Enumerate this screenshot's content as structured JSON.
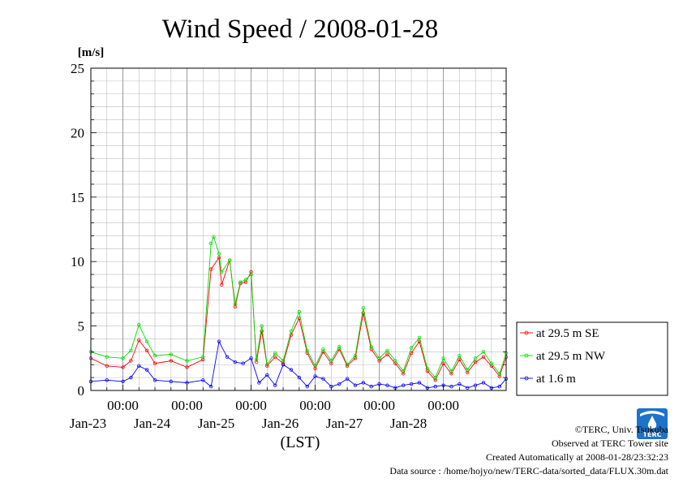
{
  "chart_data": {
    "type": "line",
    "title": "Wind Speed / 2008-01-28",
    "ylabel": "[m/s]",
    "xlabel": "(LST)",
    "ylim": [
      0,
      25
    ],
    "yticks": [
      0,
      5,
      10,
      15,
      20,
      25
    ],
    "xlim": [
      "2008-01-22T12:00",
      "2008-01-28T23:30"
    ],
    "xtick_time_label": "00:00",
    "xticks": [
      "2008-01-23T00:00",
      "2008-01-24T00:00",
      "2008-01-25T00:00",
      "2008-01-26T00:00",
      "2008-01-27T00:00",
      "2008-01-28T00:00"
    ],
    "xtick_date_labels": [
      "Jan-23",
      "Jan-24",
      "Jan-25",
      "Jan-26",
      "Jan-27",
      "Jan-28"
    ],
    "grid": true,
    "legend_position": "right",
    "series": [
      {
        "name": "at 29.5 m SE",
        "color": "#ff0000",
        "x": [
          "2008-01-22T12:00",
          "2008-01-22T18:00",
          "2008-01-23T00:00",
          "2008-01-23T03:00",
          "2008-01-23T06:00",
          "2008-01-23T09:00",
          "2008-01-23T12:00",
          "2008-01-23T18:00",
          "2008-01-24T00:00",
          "2008-01-24T06:00",
          "2008-01-24T09:00",
          "2008-01-24T12:00",
          "2008-01-24T13:00",
          "2008-01-24T16:00",
          "2008-01-24T18:00",
          "2008-01-24T20:00",
          "2008-01-24T22:00",
          "2008-01-25T00:00",
          "2008-01-25T02:00",
          "2008-01-25T04:00",
          "2008-01-25T06:00",
          "2008-01-25T09:00",
          "2008-01-25T12:00",
          "2008-01-25T15:00",
          "2008-01-25T18:00",
          "2008-01-25T21:00",
          "2008-01-26T00:00",
          "2008-01-26T03:00",
          "2008-01-26T06:00",
          "2008-01-26T09:00",
          "2008-01-26T12:00",
          "2008-01-26T15:00",
          "2008-01-26T18:00",
          "2008-01-26T21:00",
          "2008-01-27T00:00",
          "2008-01-27T03:00",
          "2008-01-27T06:00",
          "2008-01-27T09:00",
          "2008-01-27T12:00",
          "2008-01-27T15:00",
          "2008-01-27T18:00",
          "2008-01-27T21:00",
          "2008-01-28T00:00",
          "2008-01-28T03:00",
          "2008-01-28T06:00",
          "2008-01-28T09:00",
          "2008-01-28T12:00",
          "2008-01-28T15:00",
          "2008-01-28T18:00",
          "2008-01-28T21:00",
          "2008-01-28T23:30"
        ],
        "values": [
          2.5,
          1.9,
          1.8,
          2.3,
          3.9,
          3.1,
          2.1,
          2.3,
          1.8,
          2.4,
          9.4,
          10.3,
          8.2,
          10.1,
          6.5,
          8.3,
          8.4,
          9.2,
          2.2,
          4.6,
          1.9,
          2.6,
          2.1,
          4.3,
          5.6,
          2.9,
          1.7,
          3.0,
          2.1,
          3.2,
          1.9,
          2.5,
          6.0,
          3.2,
          2.3,
          2.8,
          2.1,
          1.3,
          2.9,
          3.8,
          1.5,
          0.8,
          2.1,
          1.3,
          2.4,
          1.4,
          2.2,
          2.6,
          1.9,
          1.1,
          2.6
        ]
      },
      {
        "name": "at 29.5 m NW",
        "color": "#00dd00",
        "x": [
          "2008-01-22T12:00",
          "2008-01-22T18:00",
          "2008-01-23T00:00",
          "2008-01-23T03:00",
          "2008-01-23T06:00",
          "2008-01-23T09:00",
          "2008-01-23T12:00",
          "2008-01-23T18:00",
          "2008-01-24T00:00",
          "2008-01-24T06:00",
          "2008-01-24T09:00",
          "2008-01-24T10:00",
          "2008-01-24T12:00",
          "2008-01-24T13:00",
          "2008-01-24T16:00",
          "2008-01-24T18:00",
          "2008-01-24T20:00",
          "2008-01-24T22:00",
          "2008-01-25T00:00",
          "2008-01-25T02:00",
          "2008-01-25T04:00",
          "2008-01-25T06:00",
          "2008-01-25T09:00",
          "2008-01-25T12:00",
          "2008-01-25T15:00",
          "2008-01-25T18:00",
          "2008-01-25T21:00",
          "2008-01-26T00:00",
          "2008-01-26T03:00",
          "2008-01-26T06:00",
          "2008-01-26T09:00",
          "2008-01-26T12:00",
          "2008-01-26T15:00",
          "2008-01-26T18:00",
          "2008-01-26T21:00",
          "2008-01-27T00:00",
          "2008-01-27T03:00",
          "2008-01-27T06:00",
          "2008-01-27T09:00",
          "2008-01-27T12:00",
          "2008-01-27T15:00",
          "2008-01-27T18:00",
          "2008-01-27T21:00",
          "2008-01-28T00:00",
          "2008-01-28T03:00",
          "2008-01-28T06:00",
          "2008-01-28T09:00",
          "2008-01-28T12:00",
          "2008-01-28T15:00",
          "2008-01-28T18:00",
          "2008-01-28T21:00",
          "2008-01-28T23:30"
        ],
        "values": [
          3.0,
          2.6,
          2.5,
          3.1,
          5.1,
          3.8,
          2.7,
          2.8,
          2.3,
          2.6,
          11.4,
          11.9,
          10.6,
          9.2,
          10.1,
          6.7,
          8.4,
          8.6,
          9.0,
          2.4,
          5.0,
          2.0,
          2.9,
          2.3,
          4.6,
          6.1,
          3.1,
          1.9,
          3.2,
          2.3,
          3.4,
          2.0,
          2.7,
          6.4,
          3.4,
          2.5,
          3.1,
          2.3,
          1.5,
          3.3,
          4.1,
          1.7,
          1.0,
          2.5,
          1.5,
          2.7,
          1.6,
          2.5,
          3.0,
          2.1,
          1.3,
          2.9
        ]
      },
      {
        "name": "at 1.6 m",
        "color": "#0000ff",
        "x": [
          "2008-01-22T12:00",
          "2008-01-22T18:00",
          "2008-01-23T00:00",
          "2008-01-23T03:00",
          "2008-01-23T06:00",
          "2008-01-23T09:00",
          "2008-01-23T12:00",
          "2008-01-23T18:00",
          "2008-01-24T00:00",
          "2008-01-24T06:00",
          "2008-01-24T09:00",
          "2008-01-24T12:00",
          "2008-01-24T15:00",
          "2008-01-24T18:00",
          "2008-01-24T21:00",
          "2008-01-25T00:00",
          "2008-01-25T03:00",
          "2008-01-25T06:00",
          "2008-01-25T09:00",
          "2008-01-25T12:00",
          "2008-01-25T15:00",
          "2008-01-25T18:00",
          "2008-01-25T21:00",
          "2008-01-26T00:00",
          "2008-01-26T03:00",
          "2008-01-26T06:00",
          "2008-01-26T09:00",
          "2008-01-26T12:00",
          "2008-01-26T15:00",
          "2008-01-26T18:00",
          "2008-01-26T21:00",
          "2008-01-27T00:00",
          "2008-01-27T03:00",
          "2008-01-27T06:00",
          "2008-01-27T09:00",
          "2008-01-27T12:00",
          "2008-01-27T15:00",
          "2008-01-27T18:00",
          "2008-01-27T21:00",
          "2008-01-28T00:00",
          "2008-01-28T03:00",
          "2008-01-28T06:00",
          "2008-01-28T09:00",
          "2008-01-28T12:00",
          "2008-01-28T15:00",
          "2008-01-28T18:00",
          "2008-01-28T21:00",
          "2008-01-28T23:30"
        ],
        "values": [
          0.7,
          0.8,
          0.7,
          1.0,
          1.9,
          1.6,
          0.8,
          0.7,
          0.6,
          0.8,
          0.3,
          3.8,
          2.6,
          2.2,
          2.1,
          2.5,
          0.6,
          1.2,
          0.4,
          2.0,
          1.6,
          1.0,
          0.3,
          1.1,
          0.9,
          0.3,
          0.5,
          0.9,
          0.4,
          0.6,
          0.3,
          0.5,
          0.4,
          0.2,
          0.4,
          0.5,
          0.6,
          0.2,
          0.3,
          0.4,
          0.3,
          0.5,
          0.2,
          0.4,
          0.6,
          0.2,
          0.3,
          0.9
        ]
      }
    ]
  },
  "footer": {
    "copyright": "©TERC, Univ. Tsukuba",
    "observed": "Observed at TERC Tower site",
    "created": "Created Automatically at 2008-01-28/23:32:23",
    "source": "Data source : /home/hojyo/new/TERC-data/sorted_data/FLUX.30m.dat"
  },
  "logo": {
    "text": "TERC",
    "color": "#1d72c9"
  }
}
